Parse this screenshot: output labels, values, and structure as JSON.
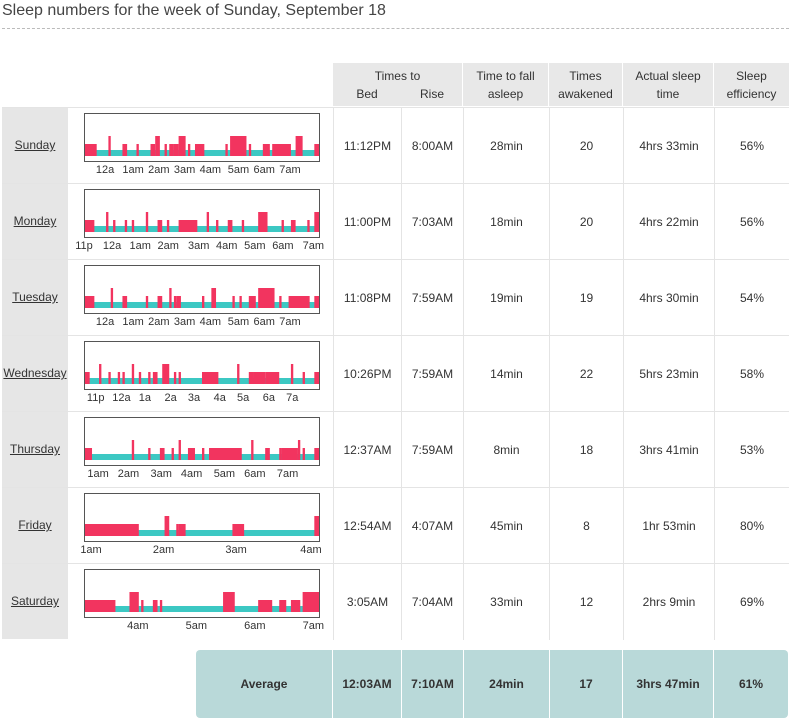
{
  "title": "Sleep numbers for the week of Sunday, September 18",
  "headers": {
    "times_to": "Times to",
    "bed": "Bed",
    "rise": "Rise",
    "time_to_fall_1": "Time to fall",
    "time_to_fall_2": "asleep",
    "times_awakened_1": "Times",
    "times_awakened_2": "awakened",
    "actual_sleep_1": "Actual sleep",
    "actual_sleep_2": "time",
    "efficiency_1": "Sleep",
    "efficiency_2": "efficiency"
  },
  "colors": {
    "asleep": "#3cc8c3",
    "awake": "#f2345f",
    "header_bg": "#e8e8e8",
    "average_bg": "#b9d9d9"
  },
  "rows": [
    {
      "day": "Sunday",
      "bed": "11:12PM",
      "rise": "8:00AM",
      "fall": "28min",
      "awakened": "20",
      "actual": "4hrs 33min",
      "efficiency": "56%",
      "ticks": [
        "12a",
        "1am",
        "2am",
        "3am",
        "4am",
        "5am",
        "6am",
        "7am"
      ],
      "tick_frac": [
        0.09,
        0.21,
        0.32,
        0.43,
        0.54,
        0.66,
        0.77,
        0.88
      ],
      "awake": [
        [
          0,
          0.05
        ],
        [
          0.1,
          0.11
        ],
        [
          0.16,
          0.18
        ],
        [
          0.22,
          0.23
        ],
        [
          0.28,
          0.3
        ],
        [
          0.3,
          0.32
        ],
        [
          0.34,
          0.35
        ],
        [
          0.36,
          0.38
        ],
        [
          0.38,
          0.4
        ],
        [
          0.4,
          0.43
        ],
        [
          0.44,
          0.45
        ],
        [
          0.47,
          0.51
        ],
        [
          0.6,
          0.61
        ],
        [
          0.62,
          0.69
        ],
        [
          0.7,
          0.71
        ],
        [
          0.76,
          0.79
        ],
        [
          0.8,
          0.88
        ],
        [
          0.9,
          0.93
        ],
        [
          0.98,
          1
        ]
      ]
    },
    {
      "day": "Monday",
      "bed": "11:00PM",
      "rise": "7:03AM",
      "fall": "18min",
      "awakened": "20",
      "actual": "4hrs 22min",
      "efficiency": "56%",
      "ticks": [
        "11p",
        "12a",
        "1am",
        "2am",
        "3am",
        "4am",
        "5am",
        "6am",
        "7am"
      ],
      "tick_frac": [
        0.0,
        0.12,
        0.24,
        0.36,
        0.49,
        0.61,
        0.73,
        0.85,
        0.98
      ],
      "awake": [
        [
          0,
          0.04
        ],
        [
          0.09,
          0.1
        ],
        [
          0.12,
          0.13
        ],
        [
          0.17,
          0.18
        ],
        [
          0.2,
          0.21
        ],
        [
          0.26,
          0.27
        ],
        [
          0.31,
          0.33
        ],
        [
          0.35,
          0.36
        ],
        [
          0.4,
          0.48
        ],
        [
          0.52,
          0.53
        ],
        [
          0.56,
          0.57
        ],
        [
          0.61,
          0.63
        ],
        [
          0.67,
          0.68
        ],
        [
          0.74,
          0.78
        ],
        [
          0.84,
          0.85
        ],
        [
          0.88,
          0.9
        ],
        [
          0.95,
          0.96
        ],
        [
          0.98,
          1
        ]
      ]
    },
    {
      "day": "Tuesday",
      "bed": "11:08PM",
      "rise": "7:59AM",
      "fall": "19min",
      "awakened": "19",
      "actual": "4hrs 30min",
      "efficiency": "54%",
      "ticks": [
        "12a",
        "1am",
        "2am",
        "3am",
        "4am",
        "5am",
        "6am",
        "7am"
      ],
      "tick_frac": [
        0.09,
        0.21,
        0.32,
        0.43,
        0.54,
        0.66,
        0.77,
        0.88
      ],
      "awake": [
        [
          0,
          0.04
        ],
        [
          0.11,
          0.12
        ],
        [
          0.16,
          0.18
        ],
        [
          0.26,
          0.27
        ],
        [
          0.31,
          0.33
        ],
        [
          0.36,
          0.37
        ],
        [
          0.38,
          0.39
        ],
        [
          0.39,
          0.41
        ],
        [
          0.5,
          0.51
        ],
        [
          0.54,
          0.56
        ],
        [
          0.63,
          0.64
        ],
        [
          0.66,
          0.67
        ],
        [
          0.7,
          0.73
        ],
        [
          0.74,
          0.81
        ],
        [
          0.83,
          0.84
        ],
        [
          0.87,
          0.96
        ],
        [
          0.98,
          1
        ]
      ]
    },
    {
      "day": "Wednesday",
      "bed": "10:26PM",
      "rise": "7:59AM",
      "fall": "14min",
      "awakened": "22",
      "actual": "5hrs 23min",
      "efficiency": "58%",
      "ticks": [
        "11p",
        "12a",
        "1a",
        "2a",
        "3a",
        "4a",
        "5a",
        "6a",
        "7a"
      ],
      "tick_frac": [
        0.05,
        0.16,
        0.26,
        0.37,
        0.47,
        0.58,
        0.68,
        0.79,
        0.89
      ],
      "awake": [
        [
          0,
          0.02
        ],
        [
          0.06,
          0.07
        ],
        [
          0.1,
          0.11
        ],
        [
          0.14,
          0.15
        ],
        [
          0.16,
          0.17
        ],
        [
          0.2,
          0.21
        ],
        [
          0.23,
          0.24
        ],
        [
          0.27,
          0.28
        ],
        [
          0.29,
          0.31
        ],
        [
          0.33,
          0.36
        ],
        [
          0.38,
          0.39
        ],
        [
          0.4,
          0.41
        ],
        [
          0.5,
          0.57
        ],
        [
          0.65,
          0.66
        ],
        [
          0.7,
          0.72
        ],
        [
          0.72,
          0.77
        ],
        [
          0.77,
          0.83
        ],
        [
          0.88,
          0.89
        ],
        [
          0.93,
          0.94
        ],
        [
          0.98,
          1
        ]
      ]
    },
    {
      "day": "Thursday",
      "bed": "12:37AM",
      "rise": "7:59AM",
      "fall": "8min",
      "awakened": "18",
      "actual": "3hrs 41min",
      "efficiency": "53%",
      "ticks": [
        "1am",
        "2am",
        "3am",
        "4am",
        "5am",
        "6am",
        "7am"
      ],
      "tick_frac": [
        0.06,
        0.19,
        0.33,
        0.46,
        0.6,
        0.73,
        0.87
      ],
      "awake": [
        [
          0,
          0.03
        ],
        [
          0.2,
          0.21
        ],
        [
          0.27,
          0.28
        ],
        [
          0.32,
          0.34
        ],
        [
          0.37,
          0.38
        ],
        [
          0.4,
          0.41
        ],
        [
          0.44,
          0.47
        ],
        [
          0.5,
          0.51
        ],
        [
          0.53,
          0.67
        ],
        [
          0.71,
          0.72
        ],
        [
          0.77,
          0.79
        ],
        [
          0.83,
          0.84
        ],
        [
          0.84,
          0.91
        ],
        [
          0.91,
          0.92
        ],
        [
          0.93,
          0.94
        ],
        [
          0.98,
          1
        ]
      ]
    },
    {
      "day": "Friday",
      "bed": "12:54AM",
      "rise": "4:07AM",
      "fall": "45min",
      "awakened": "8",
      "actual": "1hr 53min",
      "efficiency": "80%",
      "ticks": [
        "1am",
        "2am",
        "3am",
        "4am"
      ],
      "tick_frac": [
        0.03,
        0.34,
        0.65,
        0.97
      ],
      "awake": [
        [
          0,
          0.23
        ],
        [
          0.34,
          0.36
        ],
        [
          0.39,
          0.4
        ],
        [
          0.4,
          0.43
        ],
        [
          0.63,
          0.68
        ],
        [
          0.98,
          1
        ]
      ]
    },
    {
      "day": "Saturday",
      "bed": "3:05AM",
      "rise": "7:04AM",
      "fall": "33min",
      "awakened": "12",
      "actual": "2hrs 9min",
      "efficiency": "69%",
      "ticks": [
        "4am",
        "5am",
        "6am",
        "7am"
      ],
      "tick_frac": [
        0.23,
        0.48,
        0.73,
        0.98
      ],
      "awake": [
        [
          0,
          0.13
        ],
        [
          0.19,
          0.23
        ],
        [
          0.24,
          0.25
        ],
        [
          0.29,
          0.31
        ],
        [
          0.32,
          0.33
        ],
        [
          0.59,
          0.64
        ],
        [
          0.74,
          0.8
        ],
        [
          0.83,
          0.86
        ],
        [
          0.88,
          0.92
        ],
        [
          0.93,
          1
        ]
      ]
    }
  ],
  "average": {
    "label": "Average",
    "bed": "12:03AM",
    "rise": "7:10AM",
    "fall": "24min",
    "awakened": "17",
    "actual": "3hrs 47min",
    "efficiency": "61%"
  }
}
